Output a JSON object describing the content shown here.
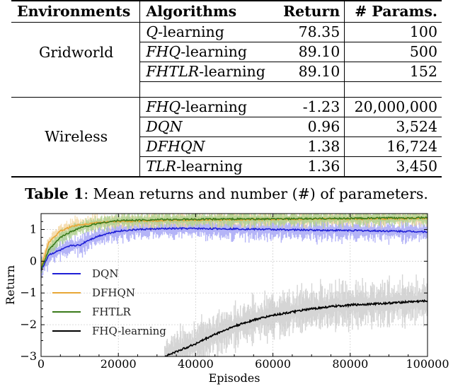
{
  "table": {
    "headers": [
      "Environments",
      "Algorithms",
      "Return",
      "# Params."
    ],
    "groups": [
      {
        "environment": "Gridworld",
        "rows": [
          {
            "algo_italic": "Q",
            "algo_rest": "-learning",
            "return": "78.35",
            "params": "100"
          },
          {
            "algo_italic": "FHQ",
            "algo_rest": "-learning",
            "return": "89.10",
            "params": "500"
          },
          {
            "algo_italic": "FHTLR",
            "algo_rest": "-learning",
            "return": "89.10",
            "params": "152"
          }
        ]
      },
      {
        "environment": "Wireless",
        "rows": [
          {
            "algo_italic": "FHQ",
            "algo_rest": "-learning",
            "return": "-1.23",
            "params": "20,000,000"
          },
          {
            "algo_italic": "DQN",
            "algo_rest": "",
            "return": "0.96",
            "params": "3,524"
          },
          {
            "algo_italic": "DFHQN",
            "algo_rest": "",
            "return": "1.38",
            "params": "16,724"
          },
          {
            "algo_italic": "TLR",
            "algo_rest": "-learning",
            "return": "1.36",
            "params": "3,450"
          }
        ]
      }
    ]
  },
  "caption": {
    "label": "Table 1",
    "text": ": Mean returns and number (#) of parameters."
  },
  "chart_data": {
    "type": "line",
    "xlabel": "Episodes",
    "ylabel": "Return",
    "xlim": [
      0,
      100000
    ],
    "ylim": [
      -3,
      1.5
    ],
    "xticks": [
      0,
      20000,
      40000,
      60000,
      80000,
      100000
    ],
    "yticks": [
      -3,
      -2,
      -1,
      0,
      1
    ],
    "grid": true,
    "legend_position": "lower-left",
    "series": [
      {
        "name": "DQN",
        "color": "#1f1fd6",
        "band_color": "#9c9cf5",
        "x": [
          0,
          2000,
          5000,
          8000,
          10000,
          12000,
          15000,
          18000,
          20000,
          25000,
          30000,
          35000,
          40000,
          50000,
          60000,
          70000,
          80000,
          90000,
          100000
        ],
        "y": [
          -0.3,
          0.2,
          0.35,
          0.5,
          0.5,
          0.65,
          0.8,
          0.9,
          0.95,
          1.0,
          1.02,
          1.03,
          1.03,
          1.02,
          1.0,
          0.98,
          0.97,
          0.95,
          0.93
        ]
      },
      {
        "name": "DFHQN",
        "color": "#e8a736",
        "band_color": "#f3d59c",
        "x": [
          0,
          2000,
          5000,
          8000,
          10000,
          15000,
          20000,
          30000,
          40000,
          50000,
          60000,
          70000,
          80000,
          90000,
          100000
        ],
        "y": [
          -0.2,
          0.6,
          0.95,
          1.1,
          1.15,
          1.22,
          1.25,
          1.28,
          1.3,
          1.31,
          1.32,
          1.33,
          1.33,
          1.34,
          1.35
        ]
      },
      {
        "name": "FHTLR",
        "color": "#3a7a1a",
        "band_color": "#a8cf8c",
        "x": [
          0,
          2000,
          5000,
          8000,
          10000,
          15000,
          20000,
          30000,
          40000,
          50000,
          60000,
          70000,
          80000,
          90000,
          100000
        ],
        "y": [
          -0.25,
          0.35,
          0.75,
          0.95,
          1.05,
          1.2,
          1.28,
          1.31,
          1.32,
          1.33,
          1.33,
          1.34,
          1.35,
          1.36,
          1.37
        ]
      },
      {
        "name": "FHQ-learning",
        "color": "#000000",
        "band_color": "#c8c8c8",
        "x": [
          32000,
          35000,
          40000,
          45000,
          50000,
          55000,
          60000,
          65000,
          70000,
          75000,
          80000,
          85000,
          90000,
          95000,
          100000
        ],
        "y": [
          -3.0,
          -2.85,
          -2.6,
          -2.3,
          -2.05,
          -1.85,
          -1.7,
          -1.6,
          -1.5,
          -1.43,
          -1.38,
          -1.35,
          -1.32,
          -1.28,
          -1.25
        ]
      }
    ]
  }
}
